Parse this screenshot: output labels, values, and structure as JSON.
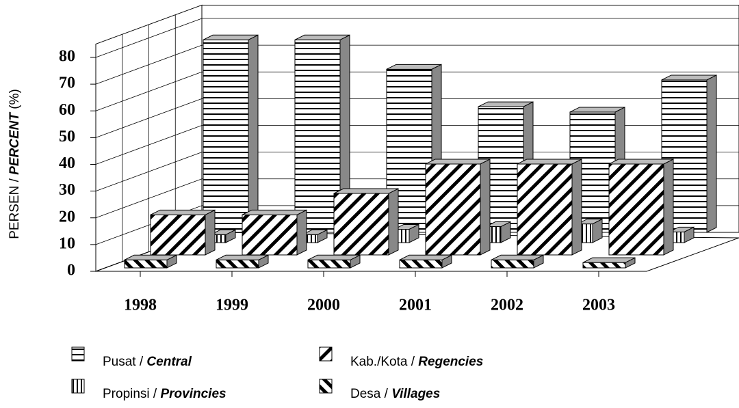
{
  "chart_data": {
    "type": "bar3d",
    "y_label": "PERSEN / PERCENT (%)",
    "categories": [
      "1998",
      "1999",
      "2000",
      "2001",
      "2002",
      "2003"
    ],
    "series": [
      {
        "name": "Pusat / Central",
        "pattern": "horizontal",
        "values": [
          72,
          72,
          61,
          47,
          45,
          57
        ]
      },
      {
        "name": "Propinsi / Provincies",
        "pattern": "vertical",
        "values": [
          3,
          3,
          5,
          6,
          7,
          4
        ]
      },
      {
        "name": "Kab./Kota / Regencies",
        "pattern": "diagonal",
        "values": [
          15,
          15,
          23,
          34,
          34,
          34
        ]
      },
      {
        "name": "Desa / Villages",
        "pattern": "backdiagonal",
        "values": [
          3,
          3,
          3,
          3,
          3,
          2
        ]
      }
    ],
    "ylim": [
      0,
      85
    ],
    "yticks": [
      0,
      10,
      20,
      30,
      40,
      50,
      60,
      70,
      80
    ],
    "grid": true
  }
}
